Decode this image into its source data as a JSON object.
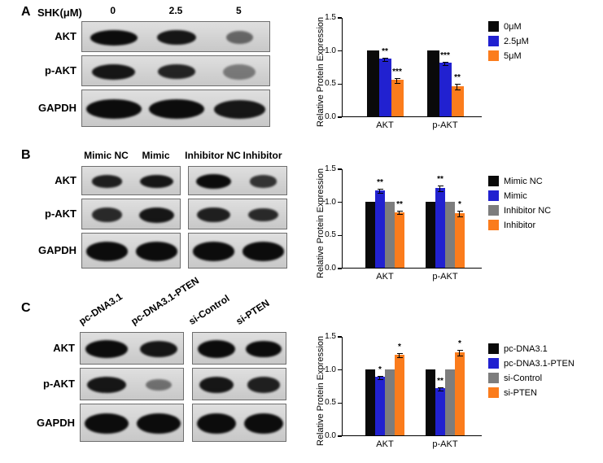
{
  "colors": {
    "black": "#0a0a0a",
    "blue": "#2121d0",
    "gray": "#7d7d7d",
    "orange": "#fb7c1c",
    "blot_bg": "#d5d5d5"
  },
  "panels": [
    {
      "letter": "A",
      "chart_index": 0,
      "blot": {
        "header": "SHK(μM)",
        "lane_labels_rotated": false,
        "groups": [
          [
            "0",
            "2.5",
            "5"
          ]
        ],
        "rows": [
          {
            "label": "AKT",
            "bands": [
              [
                {
                  "o": 1.0,
                  "w": 0.75,
                  "h": 0.5
                },
                {
                  "o": 0.95,
                  "w": 0.62,
                  "h": 0.48
                },
                {
                  "o": 0.55,
                  "w": 0.42,
                  "h": 0.42
                }
              ]
            ]
          },
          {
            "label": "p-AKT",
            "bands": [
              [
                {
                  "o": 0.95,
                  "w": 0.68,
                  "h": 0.5
                },
                {
                  "o": 0.88,
                  "w": 0.6,
                  "h": 0.46
                },
                {
                  "o": 0.45,
                  "w": 0.52,
                  "h": 0.5
                }
              ]
            ]
          },
          {
            "label": "GAPDH",
            "bands": [
              [
                {
                  "o": 1.0,
                  "w": 0.88,
                  "h": 0.52
                },
                {
                  "o": 1.0,
                  "w": 0.88,
                  "h": 0.52
                },
                {
                  "o": 0.95,
                  "w": 0.82,
                  "h": 0.5
                }
              ]
            ]
          }
        ]
      }
    },
    {
      "letter": "B",
      "chart_index": 1,
      "blot": {
        "header": "",
        "lane_labels_rotated": false,
        "groups": [
          [
            "Mimic NC",
            "Mimic"
          ],
          [
            "Inhibitor NC",
            "Inhibitor"
          ]
        ],
        "rows": [
          {
            "label": "AKT",
            "bands": [
              [
                {
                  "o": 0.9,
                  "w": 0.62,
                  "h": 0.42
                },
                {
                  "o": 0.95,
                  "w": 0.68,
                  "h": 0.46
                }
              ],
              [
                {
                  "o": 1.0,
                  "w": 0.72,
                  "h": 0.5
                },
                {
                  "o": 0.8,
                  "w": 0.55,
                  "h": 0.42
                }
              ]
            ]
          },
          {
            "label": "p-AKT",
            "bands": [
              [
                {
                  "o": 0.85,
                  "w": 0.6,
                  "h": 0.46
                },
                {
                  "o": 0.95,
                  "w": 0.7,
                  "h": 0.5
                }
              ],
              [
                {
                  "o": 0.9,
                  "w": 0.66,
                  "h": 0.48
                },
                {
                  "o": 0.85,
                  "w": 0.6,
                  "h": 0.44
                }
              ]
            ]
          },
          {
            "label": "GAPDH",
            "bands": [
              [
                {
                  "o": 1.0,
                  "w": 0.85,
                  "h": 0.54
                },
                {
                  "o": 1.0,
                  "w": 0.85,
                  "h": 0.54
                }
              ],
              [
                {
                  "o": 1.0,
                  "w": 0.85,
                  "h": 0.54
                },
                {
                  "o": 1.0,
                  "w": 0.85,
                  "h": 0.54
                }
              ]
            ]
          }
        ]
      }
    },
    {
      "letter": "C",
      "chart_index": 2,
      "blot": {
        "header": "",
        "lane_labels_rotated": true,
        "groups": [
          [
            "pc-DNA3.1",
            "pc-DNA3.1-PTEN"
          ],
          [
            "si-Control",
            "si-PTEN"
          ]
        ],
        "rows": [
          {
            "label": "AKT",
            "bands": [
              [
                {
                  "o": 1.0,
                  "w": 0.8,
                  "h": 0.55
                },
                {
                  "o": 0.95,
                  "w": 0.72,
                  "h": 0.5
                }
              ],
              [
                {
                  "o": 1.0,
                  "w": 0.78,
                  "h": 0.55
                },
                {
                  "o": 1.0,
                  "w": 0.75,
                  "h": 0.52
                }
              ]
            ]
          },
          {
            "label": "p-AKT",
            "bands": [
              [
                {
                  "o": 0.95,
                  "w": 0.75,
                  "h": 0.5
                },
                {
                  "o": 0.5,
                  "w": 0.5,
                  "h": 0.35
                }
              ],
              [
                {
                  "o": 0.95,
                  "w": 0.72,
                  "h": 0.5
                },
                {
                  "o": 0.9,
                  "w": 0.7,
                  "h": 0.48
                }
              ]
            ]
          },
          {
            "label": "GAPDH",
            "bands": [
              [
                {
                  "o": 1.0,
                  "w": 0.85,
                  "h": 0.55
                },
                {
                  "o": 1.0,
                  "w": 0.85,
                  "h": 0.55
                }
              ],
              [
                {
                  "o": 1.0,
                  "w": 0.82,
                  "h": 0.55
                },
                {
                  "o": 1.0,
                  "w": 0.82,
                  "h": 0.55
                }
              ]
            ]
          }
        ]
      }
    }
  ],
  "chart_data": [
    {
      "type": "bar",
      "panel": "A",
      "title": "",
      "ylabel": "Relative Protein Expression",
      "xlabel": "",
      "categories": [
        "AKT",
        "p-AKT"
      ],
      "ylim": [
        0,
        1.5
      ],
      "yticks": [
        "0.0",
        "0.5",
        "1.0",
        "1.5"
      ],
      "legend_position": "right",
      "grid": false,
      "series": [
        {
          "name": "0μM",
          "color": "black",
          "values": [
            1.0,
            1.0
          ],
          "errors": [
            0,
            0
          ],
          "sig": [
            "",
            ""
          ]
        },
        {
          "name": "2.5μM",
          "color": "blue",
          "values": [
            0.87,
            0.81
          ],
          "errors": [
            0.03,
            0.03
          ],
          "sig": [
            "**",
            "***"
          ]
        },
        {
          "name": "5μM",
          "color": "orange",
          "values": [
            0.55,
            0.46
          ],
          "errors": [
            0.04,
            0.05
          ],
          "sig": [
            "***",
            "**"
          ]
        }
      ]
    },
    {
      "type": "bar",
      "panel": "B",
      "title": "",
      "ylabel": "Relative Protein Expression",
      "xlabel": "",
      "categories": [
        "AKT",
        "p-AKT"
      ],
      "ylim": [
        0,
        1.5
      ],
      "yticks": [
        "0.0",
        "0.5",
        "1.0",
        "1.5"
      ],
      "legend_position": "right",
      "grid": false,
      "series": [
        {
          "name": "Mimic NC",
          "color": "black",
          "values": [
            1.0,
            1.0
          ],
          "errors": [
            0,
            0
          ],
          "sig": [
            "",
            ""
          ]
        },
        {
          "name": "Mimic",
          "color": "blue",
          "values": [
            1.17,
            1.21
          ],
          "errors": [
            0.04,
            0.05
          ],
          "sig": [
            "**",
            "**"
          ]
        },
        {
          "name": "Inhibitor NC",
          "color": "gray",
          "values": [
            1.0,
            1.0
          ],
          "errors": [
            0,
            0
          ],
          "sig": [
            "",
            ""
          ]
        },
        {
          "name": "Inhibitor",
          "color": "orange",
          "values": [
            0.84,
            0.82
          ],
          "errors": [
            0.03,
            0.05
          ],
          "sig": [
            "**",
            "*"
          ]
        }
      ]
    },
    {
      "type": "bar",
      "panel": "C",
      "title": "",
      "ylabel": "Relative Protein Expression",
      "xlabel": "",
      "categories": [
        "AKT",
        "p-AKT"
      ],
      "ylim": [
        0,
        1.5
      ],
      "yticks": [
        "0.0",
        "0.5",
        "1.0",
        "1.5"
      ],
      "legend_position": "right",
      "grid": false,
      "series": [
        {
          "name": "pc-DNA3.1",
          "color": "black",
          "values": [
            1.0,
            1.0
          ],
          "errors": [
            0,
            0
          ],
          "sig": [
            "",
            ""
          ]
        },
        {
          "name": "pc-DNA3.1-PTEN",
          "color": "blue",
          "values": [
            0.88,
            0.71
          ],
          "errors": [
            0.03,
            0.03
          ],
          "sig": [
            "*",
            "**"
          ]
        },
        {
          "name": "si-Control",
          "color": "gray",
          "values": [
            1.0,
            1.0
          ],
          "errors": [
            0,
            0
          ],
          "sig": [
            "",
            ""
          ]
        },
        {
          "name": "si-PTEN",
          "color": "orange",
          "values": [
            1.22,
            1.25
          ],
          "errors": [
            0.04,
            0.05
          ],
          "sig": [
            "*",
            "*"
          ]
        }
      ]
    }
  ]
}
